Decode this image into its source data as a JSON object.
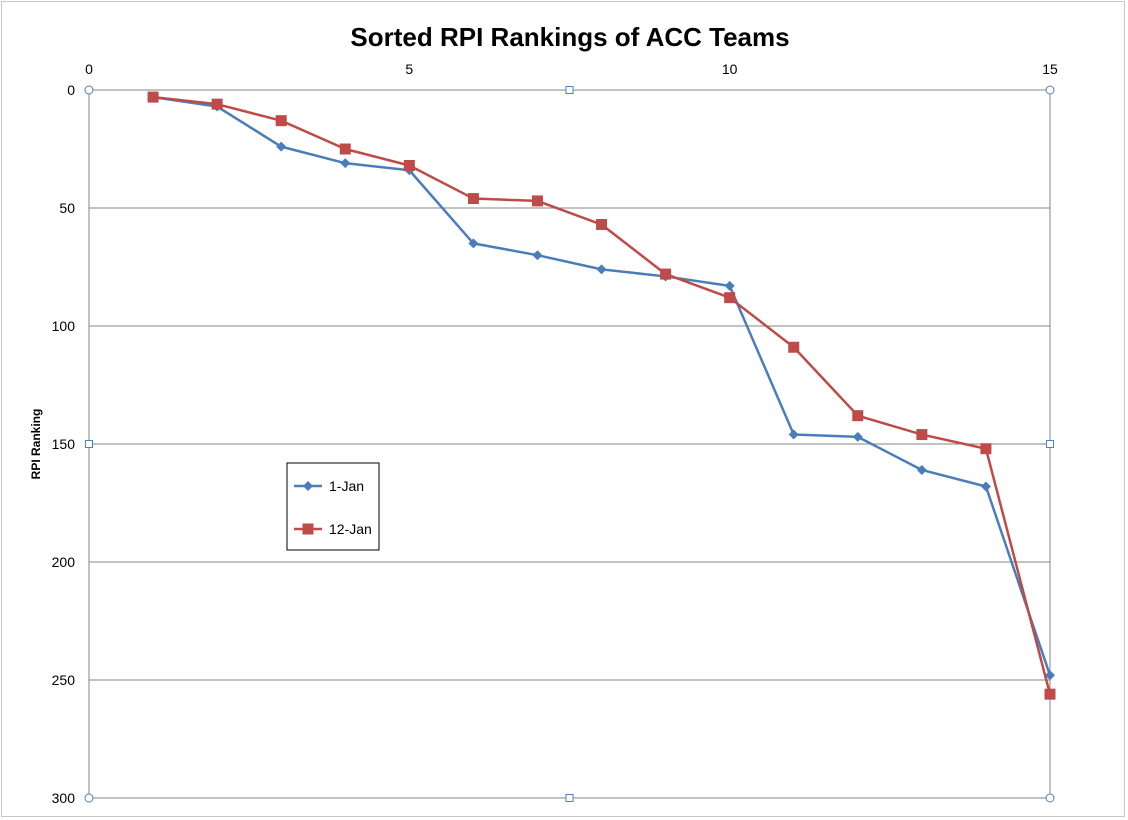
{
  "chart_data": {
    "type": "line",
    "title": "Sorted RPI Rankings of ACC Teams",
    "xlabel": "",
    "ylabel": "RPI Ranking",
    "xlim": [
      0,
      15
    ],
    "ylim": [
      0,
      300
    ],
    "y_reversed": true,
    "x_axis_position": "top",
    "x_ticks": [
      "0",
      "5",
      "10",
      "15"
    ],
    "y_ticks": [
      "0",
      "50",
      "100",
      "150",
      "200",
      "250",
      "300"
    ],
    "grid": "horizontal",
    "legend_position": "left-middle",
    "x": [
      1,
      2,
      3,
      4,
      5,
      6,
      7,
      8,
      9,
      10,
      11,
      12,
      13,
      14,
      15
    ],
    "series": [
      {
        "name": "1-Jan",
        "color": "#4a7ebb",
        "marker": "diamond",
        "values": [
          3,
          7,
          24,
          31,
          34,
          65,
          70,
          76,
          79,
          83,
          146,
          147,
          161,
          168,
          248
        ]
      },
      {
        "name": "12-Jan",
        "color": "#be4b48",
        "marker": "square",
        "values": [
          3,
          6,
          13,
          25,
          32,
          46,
          47,
          57,
          78,
          88,
          109,
          138,
          146,
          152,
          256
        ]
      }
    ]
  }
}
